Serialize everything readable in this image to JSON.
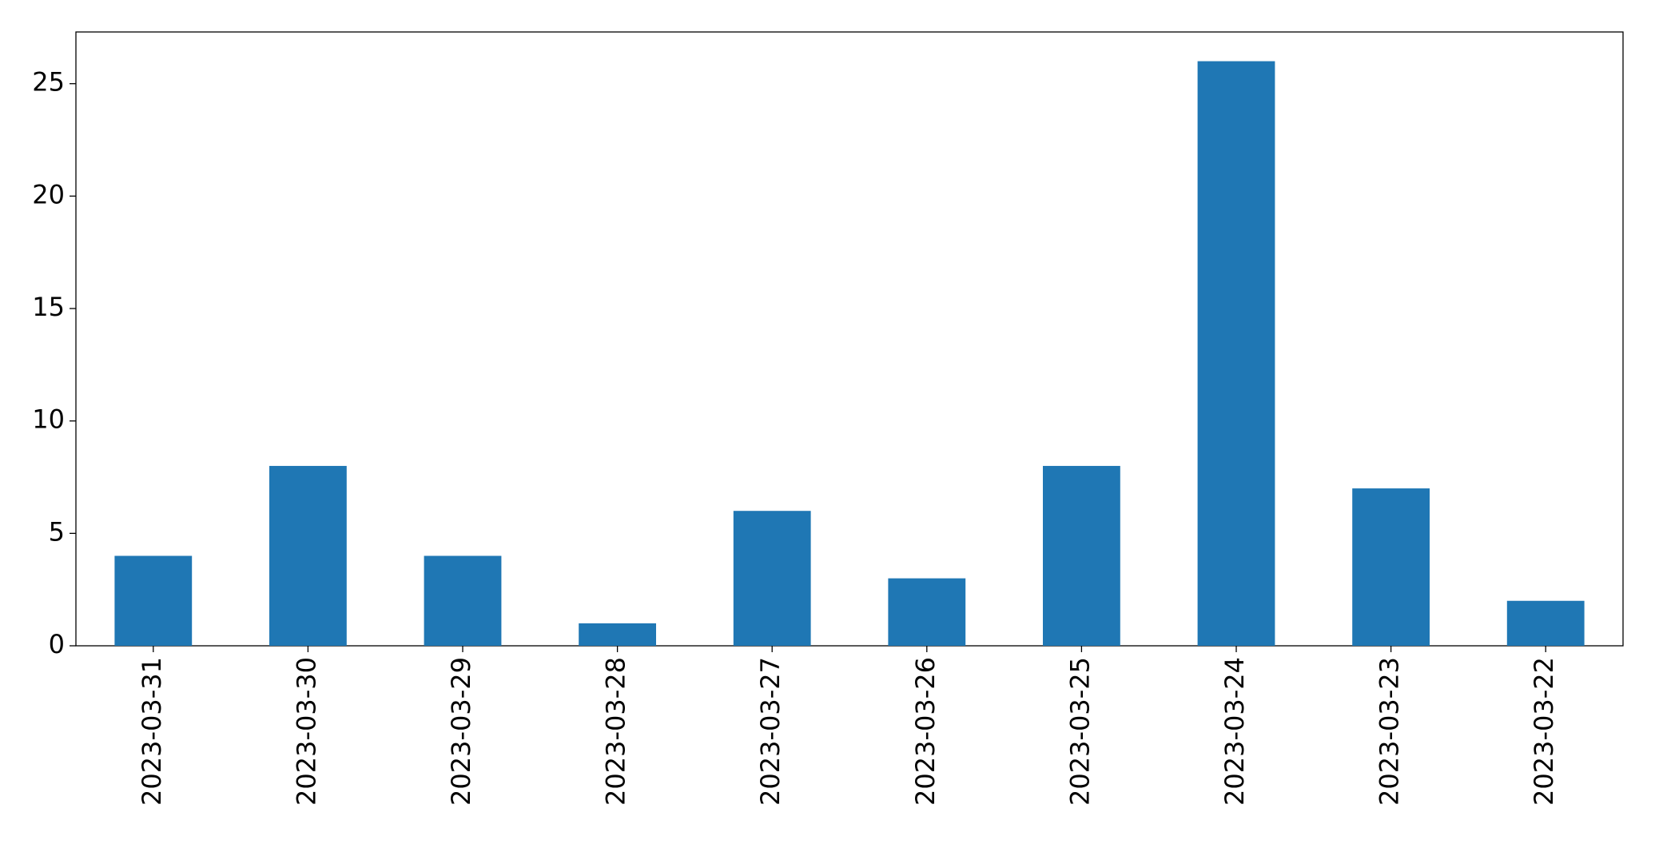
{
  "chart_data": {
    "type": "bar",
    "categories": [
      "2023-03-31",
      "2023-03-30",
      "2023-03-29",
      "2023-03-28",
      "2023-03-27",
      "2023-03-26",
      "2023-03-25",
      "2023-03-24",
      "2023-03-23",
      "2023-03-22"
    ],
    "values": [
      4,
      8,
      4,
      1,
      6,
      3,
      8,
      26,
      7,
      2
    ],
    "color": "#1f77b4",
    "ylim": [
      0,
      27.3
    ],
    "yticks": [
      0,
      5,
      10,
      15,
      20,
      25
    ],
    "grid": false
  }
}
